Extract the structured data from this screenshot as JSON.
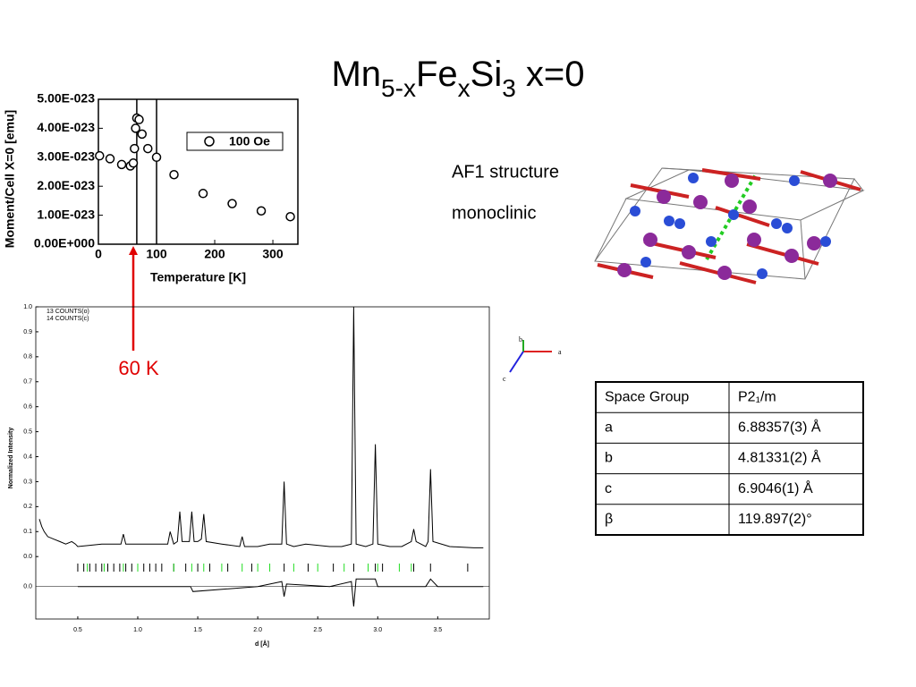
{
  "title": [
    {
      "text": "Mn"
    },
    {
      "text": "5-x",
      "sub": true
    },
    {
      "text": "Fe"
    },
    {
      "text": "x",
      "sub": true
    },
    {
      "text": "Si"
    },
    {
      "text": "3",
      "sub": true
    },
    {
      "text": " x=0"
    }
  ],
  "labels": [
    "AF1 structure",
    "monoclinic"
  ],
  "triad": {
    "a": "a",
    "b": "b",
    "c": "c"
  },
  "annotation": {
    "text": "60 K",
    "x": 60,
    "color": "#e00000"
  },
  "table": {
    "rows": [
      [
        "Space Group",
        "P2₁/m"
      ],
      [
        "a",
        "6.88357(3) Å"
      ],
      [
        "b",
        "4.81331(2) Å"
      ],
      [
        "c",
        "6.9046(1) Å"
      ],
      [
        "β",
        "119.897(2)°"
      ]
    ]
  },
  "chart_data": [
    {
      "type": "scatter",
      "xlabel": "Temperature [K]",
      "ylabel": "Moment/Cell X=0 [emu]",
      "legend": "100 Oe",
      "legend_position": "upper right",
      "marker": "open-circle",
      "color": "#000000",
      "x": [
        2,
        20,
        40,
        55,
        60,
        62,
        64,
        66,
        70,
        75,
        85,
        100,
        130,
        180,
        230,
        280,
        330
      ],
      "values": [
        3.05e-23,
        2.95e-23,
        2.75e-23,
        2.7e-23,
        2.8e-23,
        3.3e-23,
        4e-23,
        4.35e-23,
        4.3e-23,
        3.8e-23,
        3.3e-23,
        3e-23,
        2.4e-23,
        1.75e-23,
        1.4e-23,
        1.15e-23,
        9.5e-24
      ],
      "vlines": [
        66,
        100
      ],
      "xlim": [
        0,
        343
      ],
      "xticks": [
        0,
        100,
        200,
        300
      ],
      "ylim": [
        0,
        5e-23
      ],
      "yticks": [
        {
          "value": 0,
          "label": "0.00E+000"
        },
        {
          "value": 1e-23,
          "label": "1.00E-023"
        },
        {
          "value": 2e-23,
          "label": "2.00E-023"
        },
        {
          "value": 3e-23,
          "label": "3.00E-023"
        },
        {
          "value": 4e-23,
          "label": "4.00E-023"
        },
        {
          "value": 5e-23,
          "label": "5.00E-023"
        }
      ]
    },
    {
      "type": "line",
      "xlabel": "d [Å]",
      "ylabel": "Normalized Intensity",
      "legend_lines": [
        "13 COUNTS(o)",
        "14 COUNTS(c)"
      ],
      "color": "#000000",
      "x": [
        0.18,
        0.2,
        0.22,
        0.25,
        0.3,
        0.35,
        0.4,
        0.45,
        0.48,
        0.5,
        0.6,
        0.7,
        0.8,
        0.86,
        0.88,
        0.9,
        1.0,
        1.1,
        1.2,
        1.25,
        1.27,
        1.3,
        1.33,
        1.35,
        1.37,
        1.4,
        1.43,
        1.45,
        1.47,
        1.5,
        1.53,
        1.55,
        1.57,
        1.7,
        1.85,
        1.87,
        1.89,
        2.0,
        2.1,
        2.2,
        2.22,
        2.24,
        2.3,
        2.4,
        2.6,
        2.7,
        2.78,
        2.8,
        2.82,
        2.9,
        2.96,
        2.98,
        3.0,
        3.1,
        3.2,
        3.28,
        3.3,
        3.32,
        3.4,
        3.42,
        3.44,
        3.46,
        3.6,
        3.8,
        3.88
      ],
      "values": [
        0.15,
        0.12,
        0.1,
        0.08,
        0.07,
        0.06,
        0.05,
        0.06,
        0.05,
        0.04,
        0.045,
        0.05,
        0.05,
        0.05,
        0.09,
        0.05,
        0.05,
        0.05,
        0.05,
        0.05,
        0.1,
        0.05,
        0.06,
        0.18,
        0.06,
        0.06,
        0.06,
        0.18,
        0.06,
        0.06,
        0.07,
        0.17,
        0.06,
        0.05,
        0.04,
        0.08,
        0.04,
        0.04,
        0.05,
        0.05,
        0.3,
        0.05,
        0.04,
        0.05,
        0.04,
        0.04,
        0.05,
        1.0,
        0.05,
        0.04,
        0.05,
        0.45,
        0.05,
        0.04,
        0.04,
        0.06,
        0.11,
        0.06,
        0.04,
        0.06,
        0.35,
        0.06,
        0.04,
        0.035,
        0.035
      ],
      "difference": {
        "x": [
          0.5,
          1.0,
          1.44,
          1.46,
          2.0,
          2.2,
          2.22,
          2.24,
          2.6,
          2.78,
          2.8,
          2.82,
          2.98,
          3.0,
          3.4,
          3.44,
          3.5,
          3.88
        ],
        "values": [
          0,
          0,
          0,
          -0.02,
          0,
          0.02,
          -0.04,
          0.01,
          0,
          0.02,
          -0.08,
          0.03,
          0.03,
          0,
          0,
          0.03,
          0,
          0
        ],
        "ylim": [
          -0.13,
          1.12
        ],
        "yticks": [
          {
            "value": 0,
            "label": "0.0"
          }
        ]
      },
      "reflections": [
        {
          "color": "#000000",
          "x": [
            0.5,
            0.55,
            0.6,
            0.65,
            0.7,
            0.75,
            0.8,
            0.85,
            0.9,
            0.95,
            1.05,
            1.1,
            1.15,
            1.2,
            1.3,
            1.4,
            1.5,
            1.6,
            1.75,
            1.95,
            2.22,
            2.42,
            2.63,
            2.8,
            2.98,
            3.04,
            3.3,
            3.44,
            3.75
          ]
        },
        {
          "color": "#22dd22",
          "x": [
            0.58,
            0.72,
            0.88,
            1.0,
            1.3,
            1.45,
            1.55,
            1.7,
            1.87,
            2.0,
            2.1,
            2.3,
            2.5,
            2.72,
            2.92,
            3.0,
            3.18,
            3.28
          ]
        }
      ],
      "xlim": [
        0.15,
        3.93
      ],
      "xticks": [
        0.5,
        {
          "value": 1,
          "label": "1.0"
        },
        1.5,
        {
          "value": 2,
          "label": "2.0"
        },
        2.5,
        {
          "value": 3,
          "label": "3.0"
        },
        3.5
      ],
      "ylim": [
        -0.25,
        1.0
      ],
      "yticks": [
        {
          "value": 0,
          "label": "0.0"
        },
        0.1,
        0.2,
        0.3,
        0.4,
        0.5,
        0.6,
        0.7,
        0.8,
        0.9,
        {
          "value": 1,
          "label": "1.0"
        }
      ]
    }
  ]
}
